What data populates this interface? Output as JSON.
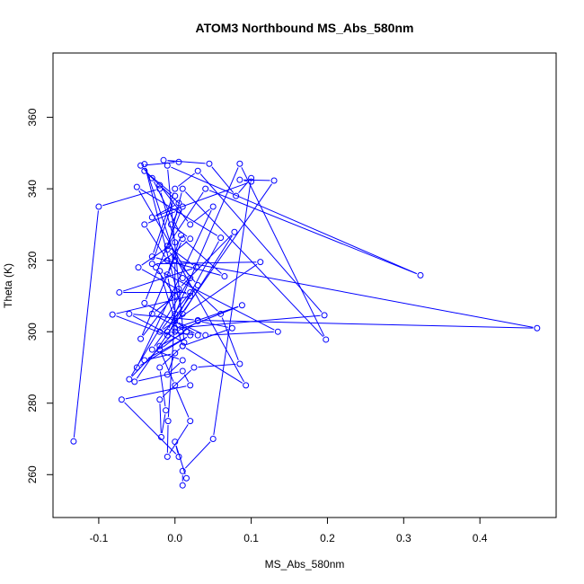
{
  "chart_data": {
    "type": "line",
    "title": "ATOM3 Northbound MS_Abs_580nm",
    "xlabel": "MS_Abs_580nm",
    "ylabel": "Theta (K)",
    "xlim": [
      -0.16,
      0.5
    ],
    "ylim": [
      248,
      378
    ],
    "x_ticks": [
      -0.1,
      0.0,
      0.1,
      0.2,
      0.3,
      0.4
    ],
    "x_tick_labels": [
      "-0.1",
      "0.0",
      "0.1",
      "0.2",
      "0.3",
      "0.4"
    ],
    "y_ticks": [
      260,
      280,
      300,
      320,
      340,
      360
    ],
    "y_tick_labels": [
      "260",
      "280",
      "300",
      "320",
      "340",
      "360"
    ],
    "grid": false,
    "legend": "none",
    "color": "#0000ff",
    "markers": "open-circle",
    "series": [
      {
        "points": [
          [
            -0.133,
            269.3
          ],
          [
            -0.1,
            335.0
          ],
          [
            -0.02,
            340.0
          ],
          [
            0.0,
            325.0
          ],
          [
            -0.048,
            318.0
          ],
          [
            0.02,
            310.0
          ],
          [
            -0.082,
            304.8
          ],
          [
            -0.01,
            299.0
          ],
          [
            0.06,
            326.3
          ],
          [
            -0.05,
            340.5
          ],
          [
            0.02,
            315.0
          ],
          [
            -0.06,
            286.7
          ],
          [
            0.0,
            300.0
          ],
          [
            0.088,
            307.4
          ],
          [
            0.0,
            301.0
          ],
          [
            0.196,
            304.6
          ],
          [
            0.03,
            345.0
          ],
          [
            0.0,
            340.0
          ],
          [
            -0.03,
            321.0
          ],
          [
            0.065,
            315.5
          ],
          [
            0.01,
            326.0
          ],
          [
            -0.045,
            298.0
          ],
          [
            0.005,
            312.0
          ],
          [
            0.078,
            327.9
          ],
          [
            0.01,
            305.0
          ],
          [
            -0.04,
            346.9
          ],
          [
            0.0,
            321.0
          ],
          [
            0.093,
            285.0
          ],
          [
            0.01,
            296.0
          ],
          [
            -0.02,
            317.0
          ],
          [
            0.135,
            300.0
          ],
          [
            0.04,
            299.0
          ],
          [
            0.0,
            303.0
          ],
          [
            0.0,
            320.0
          ],
          [
            0.475,
            301.0
          ],
          [
            0.03,
            303.2
          ],
          [
            -0.06,
            305.0
          ],
          [
            0.012,
            297.0
          ],
          [
            -0.01,
            346.5
          ],
          [
            0.322,
            315.8
          ],
          [
            0.04,
            340.0
          ],
          [
            -0.01,
            324.0
          ],
          [
            0.028,
            318.0
          ],
          [
            -0.073,
            311.0
          ],
          [
            0.02,
            311.0
          ],
          [
            -0.02,
            300.0
          ],
          [
            0.112,
            319.5
          ],
          [
            -0.03,
            319.0
          ],
          [
            0.0,
            338.0
          ],
          [
            -0.04,
            345.0
          ],
          [
            0.01,
            335.0
          ],
          [
            -0.04,
            308.0
          ],
          [
            0.03,
            299.0
          ],
          [
            -0.01,
            300.0
          ],
          [
            0.085,
            347.0
          ],
          [
            0.198,
            297.8
          ],
          [
            0.01,
            340.0
          ],
          [
            -0.01,
            323.0
          ],
          [
            0.03,
            313.0
          ],
          [
            -0.03,
            295.0
          ],
          [
            0.01,
            292.0
          ],
          [
            -0.01,
            288.0
          ],
          [
            0.0,
            294.0
          ],
          [
            -0.04,
            292.0
          ],
          [
            0.02,
            299.0
          ],
          [
            -0.05,
            290.0
          ],
          [
            0.05,
            335.0
          ],
          [
            0.02,
            330.0
          ],
          [
            -0.02,
            341.0
          ],
          [
            0.005,
            336.0
          ],
          [
            -0.03,
            332.0
          ],
          [
            0.1,
            342.0
          ],
          [
            0.085,
            342.5
          ],
          [
            0.13,
            342.3
          ],
          [
            -0.053,
            286.0
          ],
          [
            0.01,
            289.0
          ],
          [
            0.02,
            285.0
          ],
          [
            -0.07,
            281.0
          ],
          [
            0.005,
            265.0
          ],
          [
            0.0,
            269.2
          ],
          [
            0.015,
            259.0
          ],
          [
            0.01,
            257.0
          ],
          [
            0.01,
            261.0
          ],
          [
            0.05,
            270.0
          ],
          [
            0.1,
            343.0
          ],
          [
            0.08,
            338.0
          ],
          [
            0.045,
            347.0
          ],
          [
            -0.015,
            348.0
          ],
          [
            0.005,
            347.5
          ],
          [
            -0.045,
            346.5
          ],
          [
            -0.03,
            343.0
          ],
          [
            0.008,
            327.0
          ],
          [
            -0.01,
            316.0
          ],
          [
            0.0,
            305.0
          ],
          [
            -0.009,
            275.0
          ],
          [
            -0.01,
            265.0
          ],
          [
            0.02,
            275.0
          ],
          [
            0.0,
            285.0
          ],
          [
            -0.02,
            295.0
          ],
          [
            0.03,
            303.0
          ],
          [
            0.075,
            301.0
          ],
          [
            0.01,
            296.0
          ],
          [
            -0.02,
            290.0
          ],
          [
            -0.012,
            278.0
          ],
          [
            -0.018,
            270.5
          ],
          [
            -0.02,
            281.0
          ],
          [
            0.025,
            290.0
          ],
          [
            0.085,
            291.0
          ],
          [
            0.06,
            305.0
          ],
          [
            0.01,
            315.0
          ],
          [
            -0.01,
            320.0
          ],
          [
            -0.04,
            330.0
          ],
          [
            0.005,
            334.0
          ],
          [
            -0.005,
            330.0
          ],
          [
            0.02,
            326.0
          ],
          [
            -0.025,
            318.0
          ],
          [
            0.0,
            310.0
          ],
          [
            -0.03,
            305.0
          ],
          [
            0.015,
            300.0
          ],
          [
            -0.02,
            296.0
          ]
        ]
      }
    ]
  }
}
